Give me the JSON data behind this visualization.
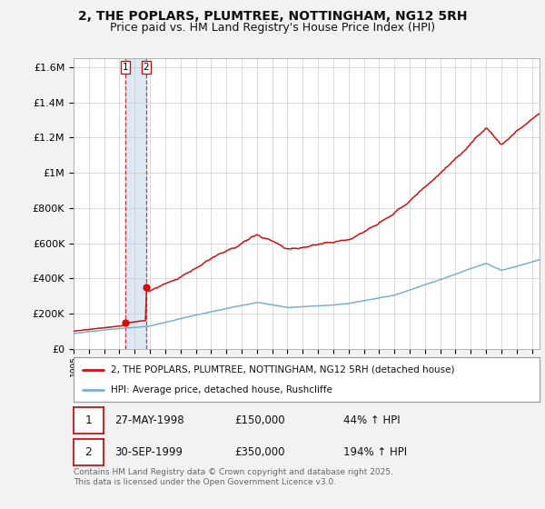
{
  "title_line1": "2, THE POPLARS, PLUMTREE, NOTTINGHAM, NG12 5RH",
  "title_line2": "Price paid vs. HM Land Registry's House Price Index (HPI)",
  "title_fontsize": 10,
  "subtitle_fontsize": 9,
  "ylabel_ticks": [
    "£0",
    "£200K",
    "£400K",
    "£600K",
    "£800K",
    "£1M",
    "£1.2M",
    "£1.4M",
    "£1.6M"
  ],
  "ylabel_values": [
    0,
    200000,
    400000,
    600000,
    800000,
    1000000,
    1200000,
    1400000,
    1600000
  ],
  "ylim": [
    0,
    1650000
  ],
  "xlim_start": 1995.0,
  "xlim_end": 2025.5,
  "hpi_color": "#7ab0d4",
  "price_color": "#cc1111",
  "background_color": "#f2f2f2",
  "plot_bg_color": "#ffffff",
  "legend_label_price": "2, THE POPLARS, PLUMTREE, NOTTINGHAM, NG12 5RH (detached house)",
  "legend_label_hpi": "HPI: Average price, detached house, Rushcliffe",
  "transaction1_label": "1",
  "transaction1_date": "27-MAY-1998",
  "transaction1_price": "£150,000",
  "transaction1_hpi": "44% ↑ HPI",
  "transaction1_year": 1998.4,
  "transaction1_value": 150000,
  "transaction2_label": "2",
  "transaction2_date": "30-SEP-1999",
  "transaction2_price": "£350,000",
  "transaction2_hpi": "194% ↑ HPI",
  "transaction2_year": 1999.75,
  "transaction2_value": 350000,
  "footer_text": "Contains HM Land Registry data © Crown copyright and database right 2025.\nThis data is licensed under the Open Government Licence v3.0.",
  "xtick_years": [
    1995,
    1996,
    1997,
    1998,
    1999,
    2000,
    2001,
    2002,
    2003,
    2004,
    2005,
    2006,
    2007,
    2008,
    2009,
    2010,
    2011,
    2012,
    2013,
    2014,
    2015,
    2016,
    2017,
    2018,
    2019,
    2020,
    2021,
    2022,
    2023,
    2024,
    2025
  ],
  "shade_color": "#dce9f5"
}
